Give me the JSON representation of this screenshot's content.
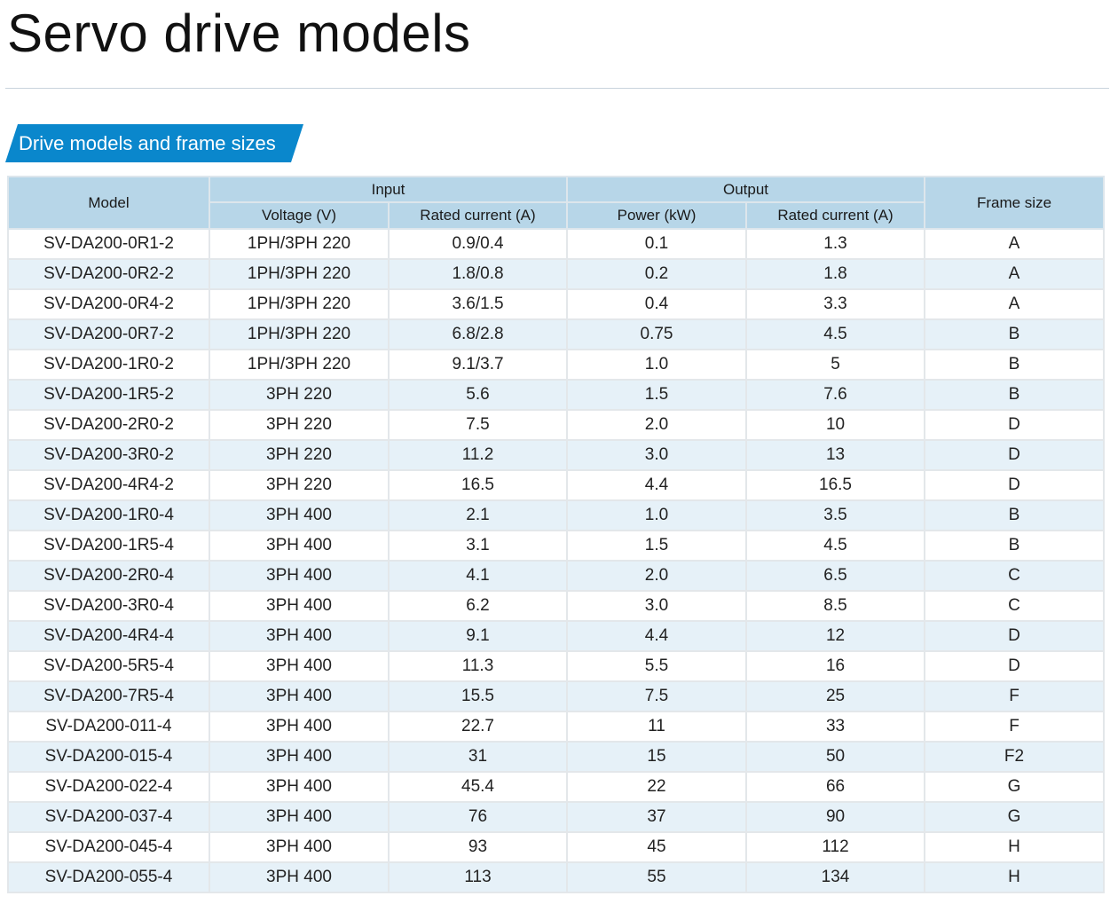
{
  "page_title": "Servo drive models",
  "section_tab": "Drive models and frame sizes",
  "table": {
    "headers": {
      "model": "Model",
      "input": "Input",
      "output": "Output",
      "frame_size": "Frame size",
      "voltage": "Voltage (V)",
      "rated_current_in": "Rated current (A)",
      "power": "Power (kW)",
      "rated_current_out": "Rated current (A)"
    },
    "rows": [
      [
        "SV-DA200-0R1-2",
        "1PH/3PH 220",
        "0.9/0.4",
        "0.1",
        "1.3",
        "A"
      ],
      [
        "SV-DA200-0R2-2",
        "1PH/3PH 220",
        "1.8/0.8",
        "0.2",
        "1.8",
        "A"
      ],
      [
        "SV-DA200-0R4-2",
        "1PH/3PH 220",
        "3.6/1.5",
        "0.4",
        "3.3",
        "A"
      ],
      [
        "SV-DA200-0R7-2",
        "1PH/3PH 220",
        "6.8/2.8",
        "0.75",
        "4.5",
        "B"
      ],
      [
        "SV-DA200-1R0-2",
        "1PH/3PH 220",
        "9.1/3.7",
        "1.0",
        "5",
        "B"
      ],
      [
        "SV-DA200-1R5-2",
        "3PH 220",
        "5.6",
        "1.5",
        "7.6",
        "B"
      ],
      [
        "SV-DA200-2R0-2",
        "3PH 220",
        "7.5",
        "2.0",
        "10",
        "D"
      ],
      [
        "SV-DA200-3R0-2",
        "3PH 220",
        "11.2",
        "3.0",
        "13",
        "D"
      ],
      [
        "SV-DA200-4R4-2",
        "3PH 220",
        "16.5",
        "4.4",
        "16.5",
        "D"
      ],
      [
        "SV-DA200-1R0-4",
        "3PH 400",
        "2.1",
        "1.0",
        "3.5",
        "B"
      ],
      [
        "SV-DA200-1R5-4",
        "3PH 400",
        "3.1",
        "1.5",
        "4.5",
        "B"
      ],
      [
        "SV-DA200-2R0-4",
        "3PH 400",
        "4.1",
        "2.0",
        "6.5",
        "C"
      ],
      [
        "SV-DA200-3R0-4",
        "3PH 400",
        "6.2",
        "3.0",
        "8.5",
        "C"
      ],
      [
        "SV-DA200-4R4-4",
        "3PH 400",
        "9.1",
        "4.4",
        "12",
        "D"
      ],
      [
        "SV-DA200-5R5-4",
        "3PH 400",
        "11.3",
        "5.5",
        "16",
        "D"
      ],
      [
        "SV-DA200-7R5-4",
        "3PH 400",
        "15.5",
        "7.5",
        "25",
        "F"
      ],
      [
        "SV-DA200-011-4",
        "3PH 400",
        "22.7",
        "11",
        "33",
        "F"
      ],
      [
        "SV-DA200-015-4",
        "3PH 400",
        "31",
        "15",
        "50",
        "F2"
      ],
      [
        "SV-DA200-022-4",
        "3PH 400",
        "45.4",
        "22",
        "66",
        "G"
      ],
      [
        "SV-DA200-037-4",
        "3PH 400",
        "76",
        "37",
        "90",
        "G"
      ],
      [
        "SV-DA200-045-4",
        "3PH 400",
        "93",
        "45",
        "112",
        "H"
      ],
      [
        "SV-DA200-055-4",
        "3PH 400",
        "113",
        "55",
        "134",
        "H"
      ]
    ]
  },
  "colors": {
    "accent_tab": "#0a87cc",
    "header_bg": "#b7d6e8",
    "row_alt_bg": "#e6f1f8"
  }
}
